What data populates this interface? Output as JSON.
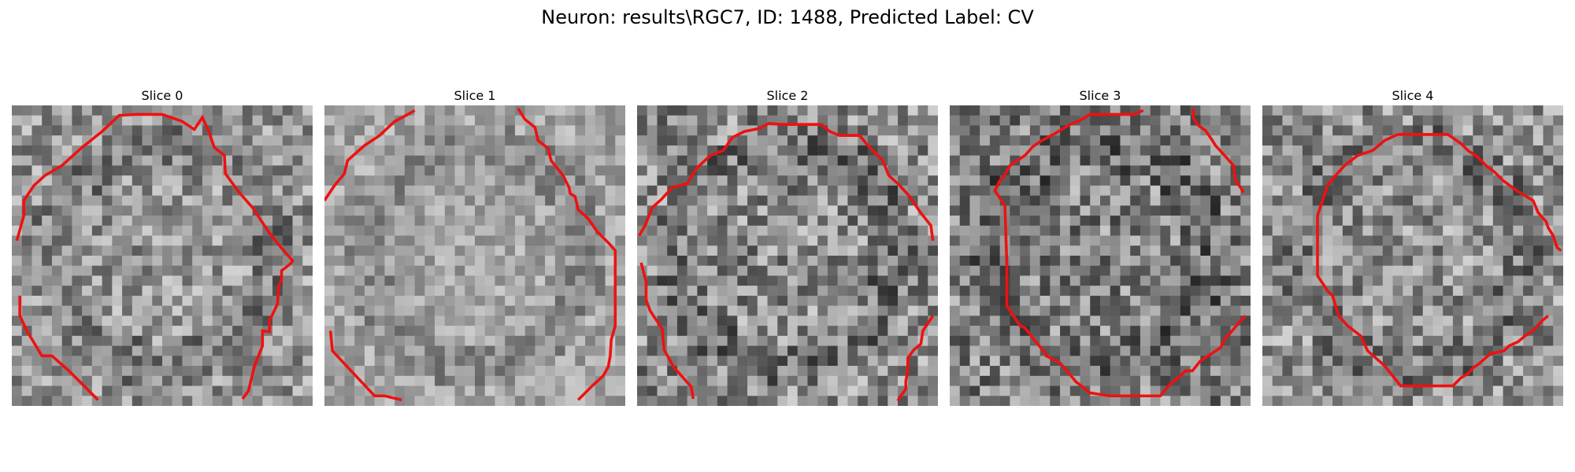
{
  "title": "Neuron: results\\RGC7, ID: 1488, Predicted Label: CV",
  "contour_color": "#ee1111",
  "slices": [
    {
      "label": "Slice 0"
    },
    {
      "label": "Slice 1"
    },
    {
      "label": "Slice 2"
    },
    {
      "label": "Slice 3"
    },
    {
      "label": "Slice 4"
    }
  ]
}
